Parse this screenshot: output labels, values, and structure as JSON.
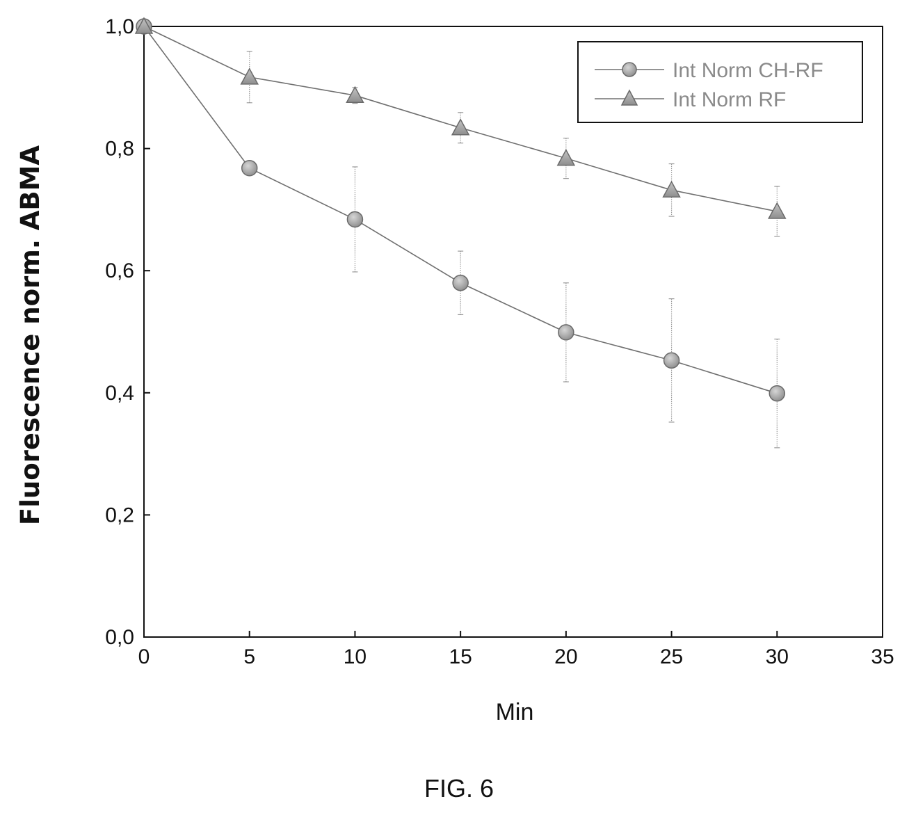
{
  "caption": "FIG. 6",
  "chart_data": {
    "type": "line",
    "xlabel": "Min",
    "ylabel": "Fluorescence norm. ABMA",
    "xlim": [
      0,
      35
    ],
    "ylim": [
      0,
      1.0
    ],
    "x_ticks": [
      0,
      5,
      10,
      15,
      20,
      25,
      30,
      35
    ],
    "y_ticks": [
      0.0,
      0.2,
      0.4,
      0.6,
      0.8,
      1.0
    ],
    "x_tick_labels": [
      "0",
      "5",
      "10",
      "15",
      "20",
      "25",
      "30",
      "35"
    ],
    "y_tick_labels": [
      "0,0",
      "0,2",
      "0,4",
      "0,6",
      "0,8",
      "1,0"
    ],
    "grid": false,
    "legend_position": "top-right",
    "series": [
      {
        "name": "Int Norm CH-RF",
        "marker": "circle",
        "x": [
          0,
          5,
          10,
          15,
          20,
          25,
          30
        ],
        "y": [
          1.0,
          0.768,
          0.684,
          0.58,
          0.499,
          0.453,
          0.399
        ],
        "err": [
          0,
          0,
          0.086,
          0.052,
          0.081,
          0.101,
          0.089
        ]
      },
      {
        "name": "Int Norm RF",
        "marker": "triangle",
        "x": [
          0,
          5,
          10,
          15,
          20,
          25,
          30
        ],
        "y": [
          1.0,
          0.917,
          0.887,
          0.834,
          0.784,
          0.732,
          0.697
        ],
        "err": [
          0,
          0.042,
          0.013,
          0.025,
          0.033,
          0.043,
          0.041
        ]
      }
    ]
  },
  "colors": {
    "axis": "#111111",
    "series_line": "#707070",
    "marker_fill": "#a8a8a8",
    "marker_stroke": "#6a6a6a",
    "error_bar": "#9a9a9a",
    "legend_text": "#8a8a8a"
  }
}
